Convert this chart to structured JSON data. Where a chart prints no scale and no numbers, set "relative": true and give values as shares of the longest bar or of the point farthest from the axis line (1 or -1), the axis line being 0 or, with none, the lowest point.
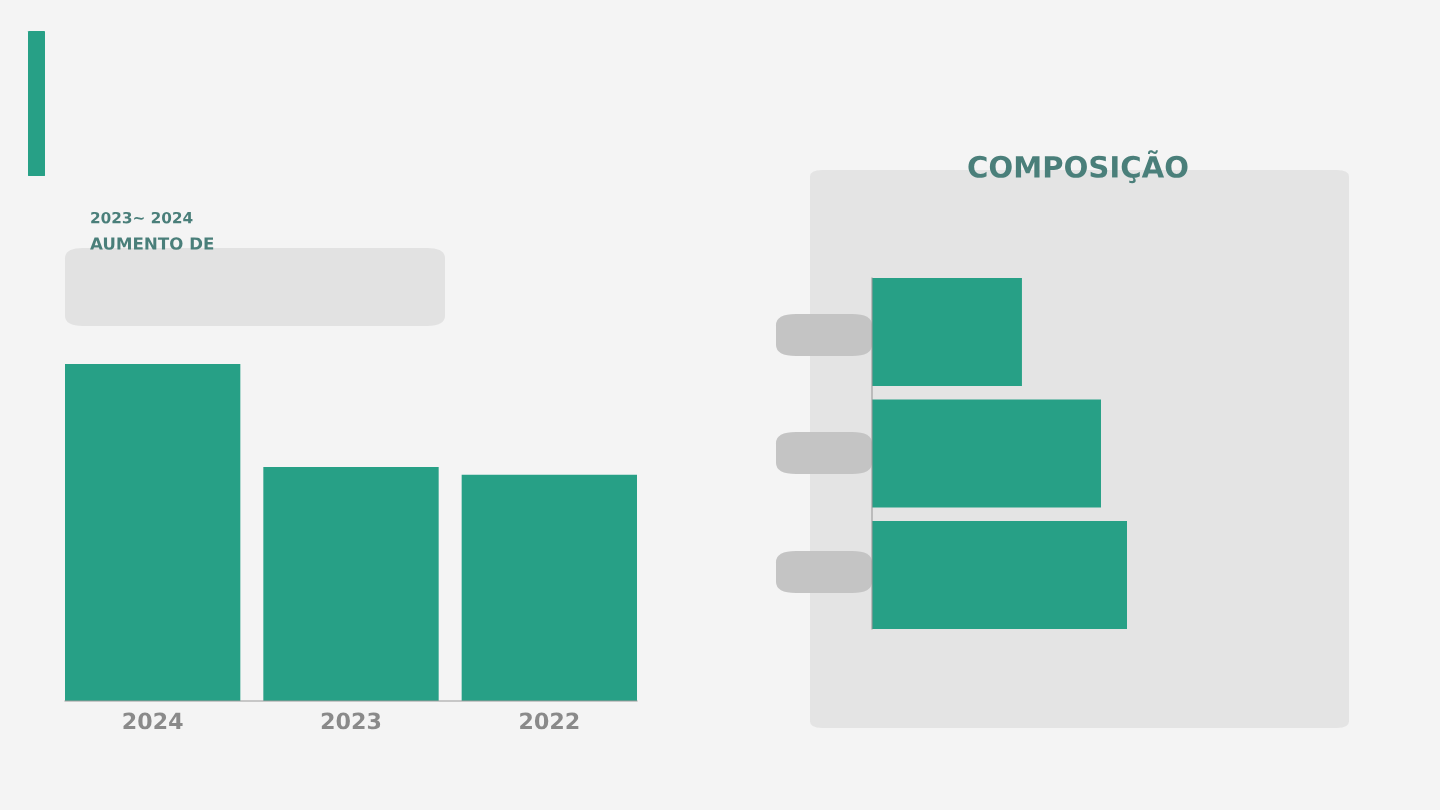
{
  "chart_data": [
    {
      "type": "bar",
      "relative": true,
      "categories": [
        "2024",
        "2023",
        "2022"
      ],
      "values": [
        1,
        0.694,
        0.671
      ],
      "color": "#27a086",
      "annotations": [
        "2023~ 2024",
        "AUMENTO DE"
      ]
    },
    {
      "type": "bar",
      "orientation": "horizontal",
      "relative": true,
      "title": "COMPOSIÇÃO",
      "categories": [
        null,
        null,
        null
      ],
      "values": [
        0.588,
        0.898,
        1
      ],
      "color": "#27a086"
    }
  ]
}
